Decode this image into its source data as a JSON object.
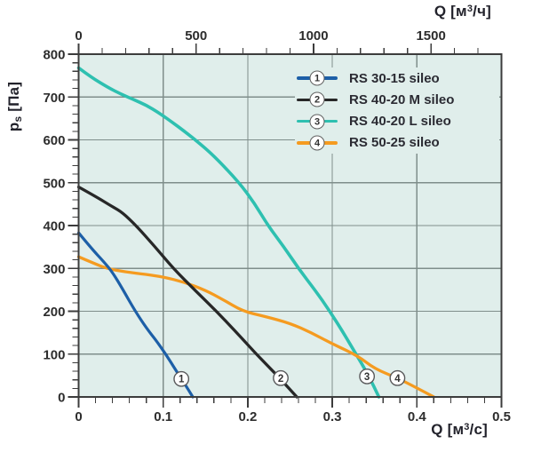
{
  "figure": {
    "bg": "#ffffff",
    "plot_bg": "#e0eeeb",
    "grid_color": "#7f8e8b",
    "axis_color": "#3c3c3c",
    "tick_text_color": "#2d2d2d",
    "title_text_color": "#22222b"
  },
  "chart_data": {
    "type": "line",
    "grid": true,
    "legend_position": "top-right-inside",
    "x_bottom": {
      "label": "Q [м³/с]",
      "label_prefix": "Q [м",
      "label_sup": "3",
      "label_suffix": "/с]",
      "range": [
        0,
        0.5
      ],
      "ticks": [
        0,
        0.1,
        0.2,
        0.3,
        0.4,
        0.5
      ],
      "tick_labels": [
        "0",
        "0.1",
        "0.2",
        "0.3",
        "0.4",
        "0.5"
      ],
      "minor_step": 0.02
    },
    "x_top": {
      "label": "Q [м³/ч]",
      "label_prefix": "Q [м",
      "label_sup": "3",
      "label_suffix": "/ч]",
      "range": [
        0,
        1800
      ],
      "ticks": [
        0,
        500,
        1000,
        1500
      ],
      "minor_step": 100,
      "unit_scale": 3600
    },
    "y_left": {
      "label": "pₛ [Па]",
      "label_main": "p",
      "label_sub": "s",
      "label_unit": " [Па]",
      "range": [
        0,
        800
      ],
      "ticks": [
        800,
        700,
        600,
        500,
        400,
        300,
        200,
        100,
        0
      ],
      "minor_step": 20
    },
    "series": [
      {
        "num": "1",
        "name": "RS 30-15 sileo",
        "color": "#1d5fa7",
        "width": 3.2,
        "marker_at": [
          0.1215,
          42
        ],
        "points": [
          [
            0,
            383
          ],
          [
            0.015,
            347
          ],
          [
            0.03,
            315
          ],
          [
            0.04,
            291
          ],
          [
            0.052,
            252
          ],
          [
            0.067,
            200
          ],
          [
            0.08,
            161
          ],
          [
            0.092,
            131
          ],
          [
            0.103,
            100
          ],
          [
            0.115,
            62
          ],
          [
            0.125,
            32
          ],
          [
            0.135,
            0
          ]
        ]
      },
      {
        "num": "2",
        "name": "RS 40-20 M sileo",
        "color": "#272727",
        "width": 3.3,
        "marker_at": [
          0.239,
          44
        ],
        "points": [
          [
            0,
            490
          ],
          [
            0.02,
            468
          ],
          [
            0.04,
            444
          ],
          [
            0.052,
            430
          ],
          [
            0.068,
            400
          ],
          [
            0.09,
            351
          ],
          [
            0.112,
            300
          ],
          [
            0.138,
            248
          ],
          [
            0.163,
            200
          ],
          [
            0.187,
            150
          ],
          [
            0.21,
            100
          ],
          [
            0.234,
            52
          ],
          [
            0.258,
            0
          ]
        ]
      },
      {
        "num": "3",
        "name": "RS 40-20 L sileo",
        "color": "#2ec0b0",
        "width": 3.6,
        "marker_at": [
          0.341,
          48
        ],
        "points": [
          [
            0,
            768
          ],
          [
            0.015,
            746
          ],
          [
            0.035,
            722
          ],
          [
            0.05,
            707
          ],
          [
            0.065,
            694
          ],
          [
            0.08,
            681
          ],
          [
            0.095,
            663
          ],
          [
            0.11,
            642
          ],
          [
            0.125,
            620
          ],
          [
            0.138,
            600
          ],
          [
            0.16,
            563
          ],
          [
            0.19,
            500
          ],
          [
            0.208,
            452
          ],
          [
            0.224,
            400
          ],
          [
            0.242,
            352
          ],
          [
            0.26,
            300
          ],
          [
            0.28,
            248
          ],
          [
            0.297,
            200
          ],
          [
            0.313,
            150
          ],
          [
            0.328,
            100
          ],
          [
            0.343,
            50
          ],
          [
            0.355,
            0
          ]
        ]
      },
      {
        "num": "4",
        "name": "RS 50-25 sileo",
        "color": "#f59b20",
        "width": 3.3,
        "marker_at": [
          0.377,
          44
        ],
        "points": [
          [
            0,
            327
          ],
          [
            0.018,
            312
          ],
          [
            0.033,
            300
          ],
          [
            0.055,
            292
          ],
          [
            0.08,
            286
          ],
          [
            0.1,
            280
          ],
          [
            0.125,
            268
          ],
          [
            0.15,
            249
          ],
          [
            0.17,
            228
          ],
          [
            0.194,
            200
          ],
          [
            0.22,
            188
          ],
          [
            0.25,
            172
          ],
          [
            0.275,
            150
          ],
          [
            0.3,
            124
          ],
          [
            0.33,
            96
          ],
          [
            0.35,
            66
          ],
          [
            0.377,
            44
          ],
          [
            0.4,
            21
          ],
          [
            0.42,
            0
          ]
        ]
      }
    ],
    "draw_order": [
      2,
      3,
      1,
      0
    ]
  }
}
